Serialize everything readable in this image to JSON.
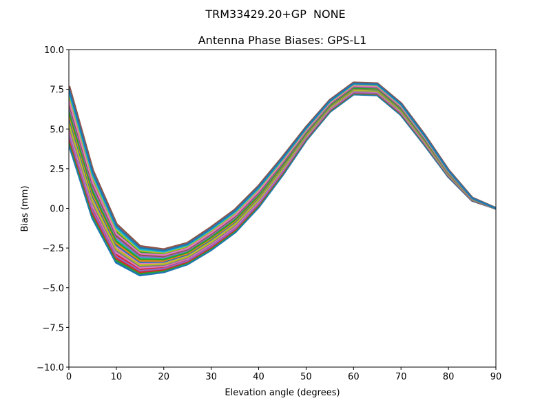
{
  "chart_data": {
    "type": "line",
    "suptitle": "TRM33429.20+GP  NONE",
    "title": "Antenna Phase Biases: GPS-L1",
    "xlabel": "Elevation angle (degrees)",
    "ylabel": "Bias (mm)",
    "xlim": [
      0,
      90
    ],
    "ylim": [
      -10,
      10
    ],
    "xticks": [
      "0",
      "10",
      "20",
      "30",
      "40",
      "50",
      "60",
      "70",
      "80",
      "90"
    ],
    "yticks": [
      "−10.0",
      "−7.5",
      "−5.0",
      "−2.5",
      "0.0",
      "2.5",
      "5.0",
      "7.5",
      "10.0"
    ],
    "grid": false,
    "x": [
      0,
      5,
      10,
      15,
      20,
      25,
      30,
      35,
      40,
      45,
      50,
      55,
      60,
      65,
      70,
      75,
      80,
      85,
      90
    ],
    "colors": [
      "#1f77b4",
      "#ff7f0e",
      "#2ca02c",
      "#d62728",
      "#9467bd",
      "#8c564b",
      "#e377c2",
      "#7f7f7f",
      "#bcbd22",
      "#17becf"
    ],
    "series": [
      {
        "values": [
          4.1,
          -0.6,
          -3.4,
          -4.2,
          -4.0,
          -3.5,
          -2.6,
          -1.5,
          0.1,
          2.1,
          4.3,
          6.1,
          7.2,
          7.15,
          5.9,
          4.0,
          2.0,
          0.5,
          0
        ]
      },
      {
        "values": [
          4.82,
          0.0,
          -2.92,
          -3.84,
          -3.72,
          -3.24,
          -2.32,
          -1.22,
          0.36,
          2.32,
          4.46,
          6.24,
          7.34,
          7.29,
          6.04,
          4.12,
          2.08,
          0.53,
          0
        ]
      },
      {
        "values": [
          5.54,
          0.6,
          -2.44,
          -3.48,
          -3.44,
          -2.98,
          -2.04,
          -0.94,
          0.62,
          2.54,
          4.62,
          6.38,
          7.48,
          7.43,
          6.18,
          4.24,
          2.16,
          0.56,
          0
        ]
      },
      {
        "values": [
          6.26,
          1.2,
          -1.96,
          -3.12,
          -3.16,
          -2.72,
          -1.76,
          -0.66,
          0.88,
          2.76,
          4.78,
          6.52,
          7.62,
          7.57,
          6.32,
          4.36,
          2.24,
          0.59,
          0
        ]
      },
      {
        "values": [
          6.98,
          1.8,
          -1.48,
          -2.76,
          -2.88,
          -2.46,
          -1.48,
          -0.38,
          1.14,
          2.98,
          4.94,
          6.66,
          7.76,
          7.71,
          6.46,
          4.48,
          2.32,
          0.62,
          0
        ]
      },
      {
        "values": [
          7.7,
          2.4,
          -1.0,
          -2.4,
          -2.6,
          -2.2,
          -1.2,
          -0.1,
          1.4,
          3.2,
          5.1,
          6.8,
          7.9,
          7.85,
          6.6,
          4.6,
          2.4,
          0.65,
          0
        ]
      }
    ]
  }
}
